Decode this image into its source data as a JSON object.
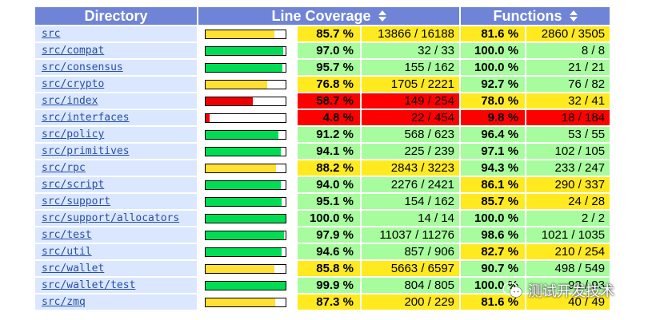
{
  "headers": {
    "directory": "Directory",
    "line_coverage": "Line Coverage",
    "functions": "Functions"
  },
  "colors": {
    "header_bg": "#6f84d6",
    "dir_bg": "#dae7fe",
    "high_bg": "#a7fc9d",
    "medium_bg": "#ffea20",
    "low_bg": "#ff0000"
  },
  "rows": [
    {
      "dir": "src",
      "line_pct": "85.7 %",
      "line_frac": 0.857,
      "line_level": "med",
      "line_count": "13866 / 16188",
      "func_pct": "81.6 %",
      "func_level": "med",
      "func_count": "2860 / 3505"
    },
    {
      "dir": "src/compat",
      "line_pct": "97.0 %",
      "line_frac": 0.97,
      "line_level": "hi",
      "line_count": "32 / 33",
      "func_pct": "100.0 %",
      "func_level": "hi",
      "func_count": "8 / 8"
    },
    {
      "dir": "src/consensus",
      "line_pct": "95.7 %",
      "line_frac": 0.957,
      "line_level": "hi",
      "line_count": "155 / 162",
      "func_pct": "100.0 %",
      "func_level": "hi",
      "func_count": "21 / 21"
    },
    {
      "dir": "src/crypto",
      "line_pct": "76.8 %",
      "line_frac": 0.768,
      "line_level": "med",
      "line_count": "1705 / 2221",
      "func_pct": "92.7 %",
      "func_level": "hi",
      "func_count": "76 / 82"
    },
    {
      "dir": "src/index",
      "line_pct": "58.7 %",
      "line_frac": 0.587,
      "line_level": "lo",
      "line_count": "149 / 254",
      "func_pct": "78.0 %",
      "func_level": "med",
      "func_count": "32 / 41"
    },
    {
      "dir": "src/interfaces",
      "line_pct": "4.8 %",
      "line_frac": 0.048,
      "line_level": "lo",
      "line_count": "22 / 454",
      "func_pct": "9.8 %",
      "func_level": "lo",
      "func_count": "18 / 184"
    },
    {
      "dir": "src/policy",
      "line_pct": "91.2 %",
      "line_frac": 0.912,
      "line_level": "hi",
      "line_count": "568 / 623",
      "func_pct": "96.4 %",
      "func_level": "hi",
      "func_count": "53 / 55"
    },
    {
      "dir": "src/primitives",
      "line_pct": "94.1 %",
      "line_frac": 0.941,
      "line_level": "hi",
      "line_count": "225 / 239",
      "func_pct": "97.1 %",
      "func_level": "hi",
      "func_count": "102 / 105"
    },
    {
      "dir": "src/rpc",
      "line_pct": "88.2 %",
      "line_frac": 0.882,
      "line_level": "med",
      "line_count": "2843 / 3223",
      "func_pct": "94.3 %",
      "func_level": "hi",
      "func_count": "233 / 247"
    },
    {
      "dir": "src/script",
      "line_pct": "94.0 %",
      "line_frac": 0.94,
      "line_level": "hi",
      "line_count": "2276 / 2421",
      "func_pct": "86.1 %",
      "func_level": "med",
      "func_count": "290 / 337"
    },
    {
      "dir": "src/support",
      "line_pct": "95.1 %",
      "line_frac": 0.951,
      "line_level": "hi",
      "line_count": "154 / 162",
      "func_pct": "85.7 %",
      "func_level": "med",
      "func_count": "24 / 28"
    },
    {
      "dir": "src/support/allocators",
      "line_pct": "100.0 %",
      "line_frac": 1.0,
      "line_level": "hi",
      "line_count": "14 / 14",
      "func_pct": "100.0 %",
      "func_level": "hi",
      "func_count": "2 / 2"
    },
    {
      "dir": "src/test",
      "line_pct": "97.9 %",
      "line_frac": 0.979,
      "line_level": "hi",
      "line_count": "11037 / 11276",
      "func_pct": "98.6 %",
      "func_level": "hi",
      "func_count": "1021 / 1035"
    },
    {
      "dir": "src/util",
      "line_pct": "94.6 %",
      "line_frac": 0.946,
      "line_level": "hi",
      "line_count": "857 / 906",
      "func_pct": "82.7 %",
      "func_level": "med",
      "func_count": "210 / 254"
    },
    {
      "dir": "src/wallet",
      "line_pct": "85.8 %",
      "line_frac": 0.858,
      "line_level": "med",
      "line_count": "5663 / 6597",
      "func_pct": "90.7 %",
      "func_level": "hi",
      "func_count": "498 / 549"
    },
    {
      "dir": "src/wallet/test",
      "line_pct": "99.9 %",
      "line_frac": 0.999,
      "line_level": "hi",
      "line_count": "804 / 805",
      "func_pct": "100.0 %",
      "func_level": "hi",
      "func_count": "93 / 93"
    },
    {
      "dir": "src/zmq",
      "line_pct": "87.3 %",
      "line_frac": 0.873,
      "line_level": "med",
      "line_count": "200 / 229",
      "func_pct": "81.6 %",
      "func_level": "med",
      "func_count": "40 / 49"
    }
  ],
  "watermark": {
    "text": "测试开发技术",
    "icon": "wechat-icon"
  }
}
